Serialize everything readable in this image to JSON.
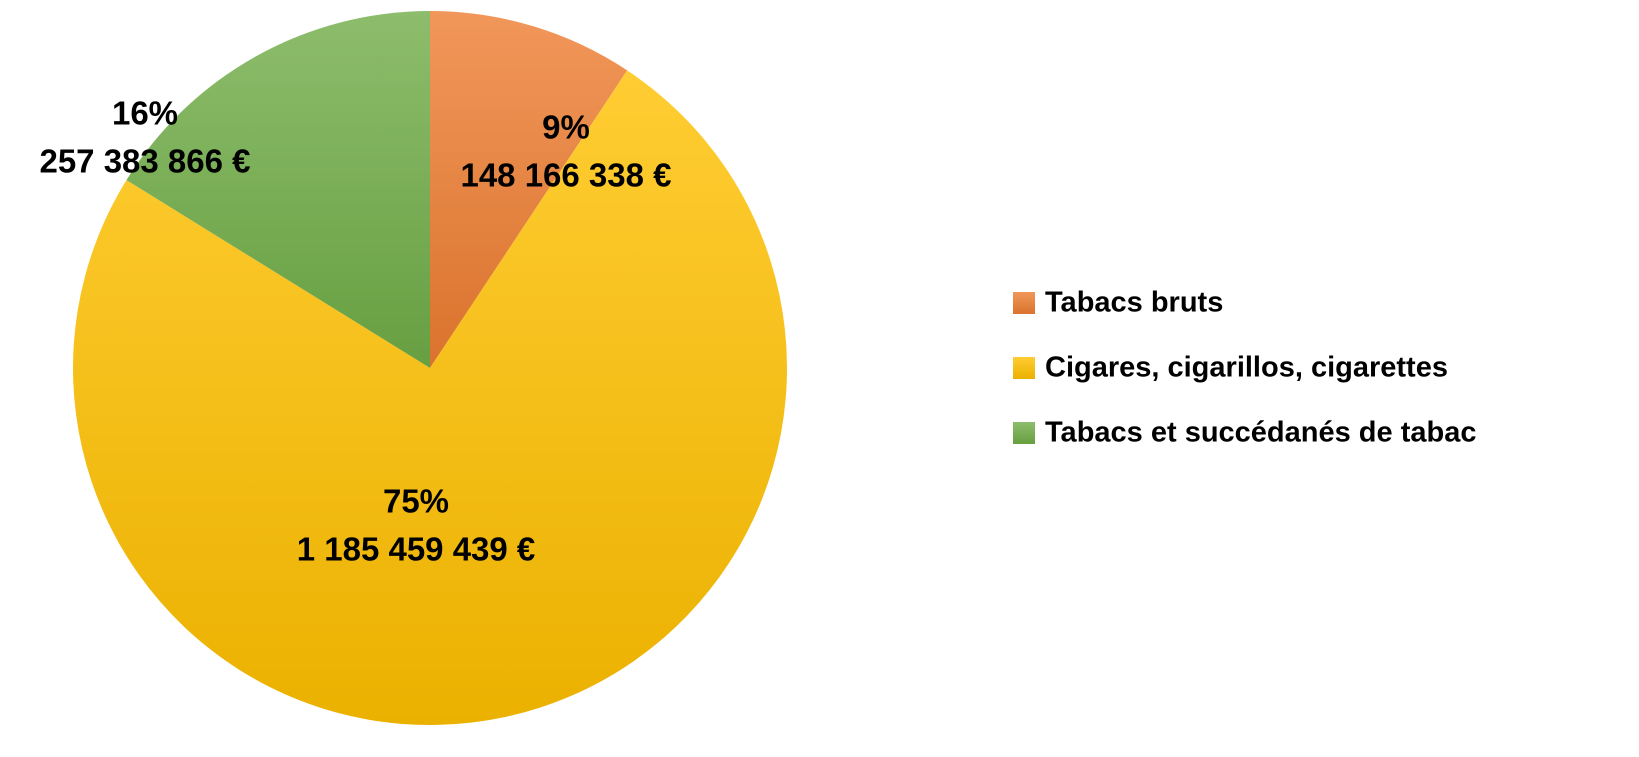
{
  "chart_data": {
    "type": "pie",
    "categories": [
      "Tabacs bruts",
      "Cigares, cigarillos, cigarettes",
      "Tabacs et succédanés de tabac"
    ],
    "values": [
      148166338,
      1185459439,
      257383866
    ],
    "value_labels": [
      "148 166 338 €",
      "1 185 459 439 €",
      "257 383 866 €"
    ],
    "percents": [
      9,
      75,
      16
    ],
    "percent_labels": [
      "9%",
      "75%",
      "16%"
    ],
    "colors": [
      "#ed7d31",
      "#ffc000",
      "#70ad47"
    ],
    "legend": "right"
  }
}
